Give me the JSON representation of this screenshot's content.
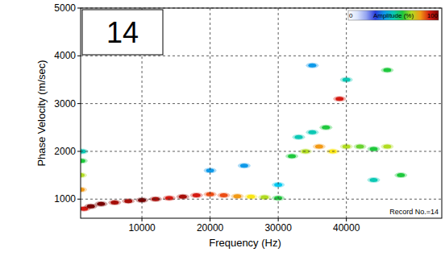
{
  "chart_data": {
    "type": "heatmap",
    "x_label": "Frequency (Hz)",
    "y_label": "Phase Velocity (m/sec)",
    "x": [
      1500,
      2500,
      4000,
      6000,
      8000,
      10000,
      12000,
      14000,
      16000,
      18000,
      20000,
      22000,
      24000,
      26000,
      28000,
      30000,
      1000,
      1000,
      1100,
      1200,
      32000,
      34000,
      36000,
      38000,
      40000,
      42000,
      44000,
      46000,
      39000,
      37000,
      35000,
      33000,
      20000,
      25000,
      30000,
      44000,
      48000,
      40000,
      46000,
      35000
    ],
    "values": [
      800,
      850,
      900,
      930,
      960,
      980,
      1000,
      1020,
      1050,
      1080,
      1100,
      1080,
      1060,
      1050,
      1040,
      1020,
      1200,
      1500,
      1800,
      2000,
      1900,
      2000,
      2100,
      2000,
      2100,
      2100,
      2050,
      2100,
      3100,
      2500,
      2400,
      2300,
      1600,
      1700,
      1300,
      1400,
      1500,
      3500,
      3700,
      3800
    ],
    "amplitude": [
      90,
      100,
      100,
      95,
      95,
      100,
      95,
      90,
      95,
      90,
      85,
      85,
      80,
      75,
      70,
      60,
      80,
      70,
      60,
      50,
      60,
      70,
      80,
      75,
      70,
      65,
      60,
      70,
      90,
      60,
      50,
      50,
      40,
      40,
      45,
      50,
      60,
      50,
      60,
      40
    ],
    "xlim": [
      1000,
      54000
    ],
    "ylim": [
      600,
      5000
    ],
    "xticks": [
      10000,
      20000,
      30000,
      40000
    ],
    "yticks": [
      1000,
      2000,
      3000,
      4000,
      5000
    ],
    "grid": true,
    "colorbar_range": [
      0,
      100
    ],
    "colorbar_ticks": [
      0,
      100
    ],
    "colorbar_label": "Amplitude (%)",
    "annotations": [
      "14",
      "Record No.=14"
    ]
  }
}
